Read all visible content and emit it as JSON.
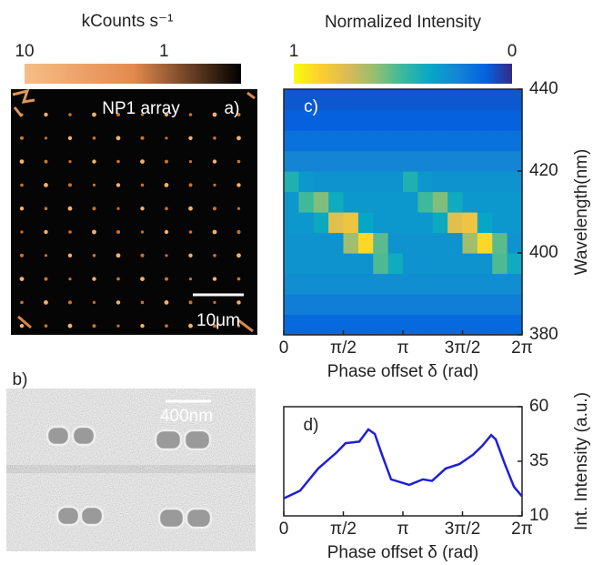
{
  "chart_data": [
    {
      "type": "image",
      "panel_label": "a)",
      "label": "NP1 array",
      "scale_bar": "10μm",
      "colorbar": {
        "label": "kCounts s⁻¹",
        "ticks": [
          10,
          1
        ],
        "lim": [
          10,
          0.28
        ],
        "log": true,
        "colors": [
          "#f6bd86",
          "#e48a4e",
          "#000000"
        ]
      }
    },
    {
      "type": "image",
      "panel_label": "b)",
      "scale_bar": "400nm"
    },
    {
      "type": "heatmap",
      "panel_label": "c)",
      "xlabel": "Phase offset δ (rad)",
      "ylabel": "Wavelength(nm)",
      "xlim": [
        0,
        6.2832
      ],
      "xticks": [
        0,
        {
          "value": 1.5708,
          "label": "π/2"
        },
        {
          "value": 3.1416,
          "label": "π"
        },
        {
          "value": 4.7124,
          "label": "3π/2"
        },
        {
          "value": 6.2832,
          "label": "2π"
        }
      ],
      "ylim": [
        380,
        440
      ],
      "yticks": [
        380,
        400,
        420,
        440
      ],
      "z": [
        [
          0.15,
          0.15,
          0.15,
          0.15,
          0.15,
          0.15,
          0.15,
          0.15,
          0.15,
          0.15,
          0.15,
          0.15,
          0.15,
          0.15,
          0.15,
          0.15
        ],
        [
          0.22,
          0.22,
          0.22,
          0.22,
          0.22,
          0.22,
          0.22,
          0.22,
          0.22,
          0.22,
          0.22,
          0.22,
          0.22,
          0.22,
          0.22,
          0.22
        ],
        [
          0.28,
          0.28,
          0.28,
          0.28,
          0.28,
          0.28,
          0.28,
          0.28,
          0.28,
          0.28,
          0.28,
          0.28,
          0.28,
          0.28,
          0.28,
          0.28
        ],
        [
          0.3,
          0.3,
          0.3,
          0.3,
          0.3,
          0.3,
          0.53,
          0.4,
          0.3,
          0.3,
          0.3,
          0.3,
          0.3,
          0.3,
          0.53,
          0.4
        ],
        [
          0.3,
          0.3,
          0.3,
          0.3,
          0.65,
          0.9,
          0.55,
          0.3,
          0.3,
          0.3,
          0.3,
          0.3,
          0.65,
          0.9,
          0.55,
          0.3
        ],
        [
          0.32,
          0.32,
          0.39,
          0.78,
          0.82,
          0.37,
          0.32,
          0.32,
          0.32,
          0.32,
          0.39,
          0.78,
          0.82,
          0.37,
          0.32,
          0.32
        ],
        [
          0.32,
          0.51,
          0.6,
          0.4,
          0.32,
          0.32,
          0.32,
          0.32,
          0.32,
          0.51,
          0.6,
          0.4,
          0.32,
          0.32,
          0.32,
          0.32
        ],
        [
          0.44,
          0.32,
          0.3,
          0.3,
          0.3,
          0.3,
          0.3,
          0.3,
          0.44,
          0.32,
          0.3,
          0.3,
          0.3,
          0.3,
          0.3,
          0.3
        ],
        [
          0.25,
          0.25,
          0.25,
          0.25,
          0.25,
          0.25,
          0.25,
          0.25,
          0.25,
          0.25,
          0.25,
          0.25,
          0.25,
          0.25,
          0.25,
          0.25
        ],
        [
          0.18,
          0.18,
          0.18,
          0.18,
          0.18,
          0.18,
          0.18,
          0.18,
          0.18,
          0.18,
          0.18,
          0.18,
          0.18,
          0.18,
          0.18,
          0.18
        ],
        [
          0.12,
          0.12,
          0.12,
          0.12,
          0.12,
          0.12,
          0.12,
          0.12,
          0.12,
          0.12,
          0.12,
          0.12,
          0.12,
          0.12,
          0.12,
          0.12
        ],
        [
          0.1,
          0.1,
          0.1,
          0.1,
          0.1,
          0.1,
          0.1,
          0.1,
          0.1,
          0.1,
          0.1,
          0.1,
          0.1,
          0.1,
          0.1,
          0.1
        ]
      ],
      "colorbar": {
        "label": "Normalized Intensity",
        "ticks": [
          1,
          0
        ],
        "lim": [
          1,
          0
        ],
        "colors": [
          "#352a87",
          "#0363e1",
          "#1485d4",
          "#06a7c6",
          "#38b99e",
          "#92bf73",
          "#d9ba56",
          "#fcce2e",
          "#f9fb0e"
        ]
      }
    },
    {
      "type": "line",
      "panel_label": "d)",
      "xlabel": "Phase offset δ (rad)",
      "ylabel": "Int. Intensity (a.u.)",
      "color": "#1f1fd6",
      "x": [
        0,
        0.43,
        0.91,
        1.39,
        1.63,
        1.99,
        2.23,
        2.4,
        2.59,
        2.83,
        3.31,
        3.67,
        3.91,
        4.27,
        4.63,
        4.99,
        5.23,
        5.47,
        5.59,
        5.83,
        6.07,
        6.28
      ],
      "values": [
        18,
        21.5,
        31.7,
        39,
        43.3,
        44,
        49.6,
        47.5,
        38,
        26.7,
        24.2,
        26.7,
        26,
        31.7,
        33.7,
        38,
        42,
        47,
        45,
        33.7,
        23.3,
        19
      ],
      "xlim": [
        0,
        6.2832
      ],
      "xticks": [
        0,
        {
          "value": 1.5708,
          "label": "π/2"
        },
        {
          "value": 3.1416,
          "label": "π"
        },
        {
          "value": 4.7124,
          "label": "3π/2"
        },
        {
          "value": 6.2832,
          "label": "2π"
        }
      ],
      "ylim": [
        10,
        60
      ],
      "yticks": [
        10,
        35,
        60
      ]
    }
  ]
}
